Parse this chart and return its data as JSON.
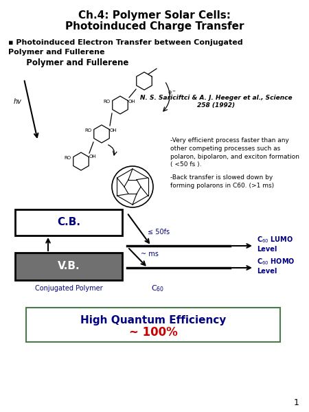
{
  "title_line1": "Ch.4: Polymer Solar Cells:",
  "title_line2": "Photoinduced Charge Transfer",
  "bullet_text": "▪ Photoinduced Electron Transfer between Conjugated",
  "bullet_text2": "Polymer and Fullerene",
  "ref_text": "N. S. Sariciftci & A. J. Heeger et al., Science\n258 (1992)",
  "desc_text1": "-Very efficient process faster than any\nother competing processes such as\npolaron, bipolaron, and exciton formation\n( <50 fs ).",
  "desc_text2": "-Back transfer is slowed down by\nforming polarons in C60. (>1 ms)",
  "cb_label": "C.B.",
  "vb_label": "V.B.",
  "conj_poly_label": "Conjugated Polymer",
  "c60_label": "C$_{60}$",
  "lumo_label": "C$_{60}$ LUMO\nLevel",
  "homo_label": "C$_{60}$ HOMO\nLevel",
  "fs_label": "≤ 50fs",
  "ms_label": "~ ms",
  "hqe_line1": "High Quantum Efficiency",
  "hqe_line2": "~ 100%",
  "page_num": "1",
  "bg_color": "#ffffff",
  "title_color": "#000000",
  "blue_color": "#000080",
  "red_color": "#cc0000",
  "gray_color": "#808080",
  "green_border": "#4a7a4a",
  "cb_box_color": "#ffffff",
  "vb_box_color": "#707070"
}
